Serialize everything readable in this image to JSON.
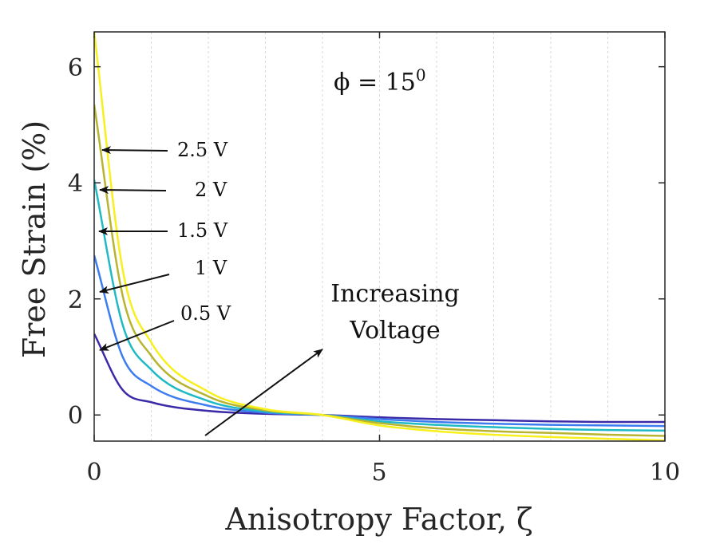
{
  "chart_data": {
    "type": "line",
    "x_range": [
      0,
      10
    ],
    "y_range": [
      -0.45,
      6.6
    ],
    "xticks": [
      0,
      5,
      10
    ],
    "yticks": [
      0,
      2,
      4,
      6
    ],
    "xtick_labels": [
      "0",
      "5",
      "10"
    ],
    "ytick_labels": [
      "0",
      "2",
      "4",
      "6"
    ],
    "xlabel": "Anisotropy Factor, ζ",
    "ylabel": "Free Strain (%)",
    "grid": "vertical dashed",
    "title_annotation": "ϕ = 15",
    "title_annotation_superscript": "0",
    "series": [
      {
        "name": "0.5 V",
        "label": "0.5 V",
        "color": "#3b2aa8",
        "x": [
          0,
          0.5,
          1,
          2,
          3,
          4,
          5,
          6,
          7,
          8,
          9,
          10
        ],
        "y": [
          1.4,
          0.43,
          0.22,
          0.07,
          0.02,
          0.0,
          -0.04,
          -0.07,
          -0.09,
          -0.11,
          -0.12,
          -0.12
        ]
      },
      {
        "name": "1 V",
        "label": "1 V",
        "color": "#3c7cf0",
        "x": [
          0,
          0.5,
          1,
          2,
          3,
          4,
          5,
          6,
          7,
          8,
          9,
          10
        ],
        "y": [
          2.75,
          1.0,
          0.5,
          0.16,
          0.04,
          0.0,
          -0.07,
          -0.12,
          -0.15,
          -0.17,
          -0.18,
          -0.19
        ]
      },
      {
        "name": "1.5 V",
        "label": "1.5 V",
        "color": "#1fbac4",
        "x": [
          0,
          0.5,
          1,
          2,
          3,
          4,
          5,
          6,
          7,
          8,
          9,
          10
        ],
        "y": [
          4.05,
          1.55,
          0.78,
          0.24,
          0.06,
          0.0,
          -0.11,
          -0.17,
          -0.21,
          -0.24,
          -0.26,
          -0.27
        ]
      },
      {
        "name": "2 V",
        "label": "2 V",
        "color": "#b8b430",
        "x": [
          0,
          0.5,
          1,
          2,
          3,
          4,
          5,
          6,
          7,
          8,
          9,
          10
        ],
        "y": [
          5.35,
          2.05,
          1.02,
          0.32,
          0.08,
          0.0,
          -0.14,
          -0.23,
          -0.28,
          -0.31,
          -0.34,
          -0.36
        ]
      },
      {
        "name": "2.5 V",
        "label": "2.5 V",
        "color": "#f7f01c",
        "x": [
          0,
          0.5,
          1,
          2,
          3,
          4,
          5,
          6,
          7,
          8,
          9,
          10
        ],
        "y": [
          6.6,
          2.5,
          1.25,
          0.4,
          0.1,
          0.0,
          -0.18,
          -0.28,
          -0.34,
          -0.38,
          -0.41,
          -0.44
        ]
      }
    ],
    "increasing_label": [
      "Increasing",
      "Voltage"
    ]
  }
}
